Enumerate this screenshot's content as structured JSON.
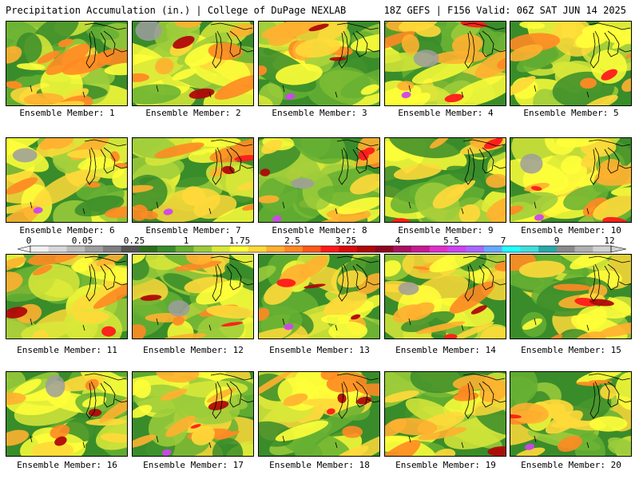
{
  "header": {
    "title": "Precipitation Accumulation (in.) | College of DuPage NEXLAB",
    "valid": "18Z GEFS | F156 Valid: 06Z SAT JUN 14 2025"
  },
  "colorbar": {
    "labels": [
      "0",
      "0.05",
      "0.25",
      "1",
      "1.75",
      "2.5",
      "3.25",
      "4",
      "5.5",
      "7",
      "9",
      "12"
    ],
    "colors": [
      "#f2f2f2",
      "#d9d9d9",
      "#bdbdbd",
      "#9e9e9e",
      "#7f7f7f",
      "#555555",
      "#2e6e1e",
      "#3a8c2a",
      "#66b032",
      "#9ccc3b",
      "#d8e83a",
      "#ffff3a",
      "#ffd93a",
      "#ffb030",
      "#ff8a24",
      "#ff5a1a",
      "#ff1a1a",
      "#d80c0c",
      "#b00808",
      "#8c0820",
      "#aa1060",
      "#c81a90",
      "#e030c8",
      "#cc44ee",
      "#aa66ff",
      "#66aaff",
      "#22ffff",
      "#44dddd",
      "#2aa8a8",
      "#8a8a8a",
      "#b0b0b0",
      "#d2d2d2"
    ]
  },
  "panels": [
    {
      "label": "Ensemble Member: 1"
    },
    {
      "label": "Ensemble Member: 2"
    },
    {
      "label": "Ensemble Member: 3"
    },
    {
      "label": "Ensemble Member: 4"
    },
    {
      "label": "Ensemble Member: 5"
    },
    {
      "label": "Ensemble Member: 6"
    },
    {
      "label": "Ensemble Member: 7"
    },
    {
      "label": "Ensemble Member: 8"
    },
    {
      "label": "Ensemble Member: 9"
    },
    {
      "label": "Ensemble Member: 10"
    },
    {
      "label": "Ensemble Member: 11"
    },
    {
      "label": "Ensemble Member: 12"
    },
    {
      "label": "Ensemble Member: 13"
    },
    {
      "label": "Ensemble Member: 14"
    },
    {
      "label": "Ensemble Member: 15"
    },
    {
      "label": "Ensemble Member: 16"
    },
    {
      "label": "Ensemble Member: 17"
    },
    {
      "label": "Ensemble Member: 18"
    },
    {
      "label": "Ensemble Member: 19"
    },
    {
      "label": "Ensemble Member: 20"
    }
  ]
}
